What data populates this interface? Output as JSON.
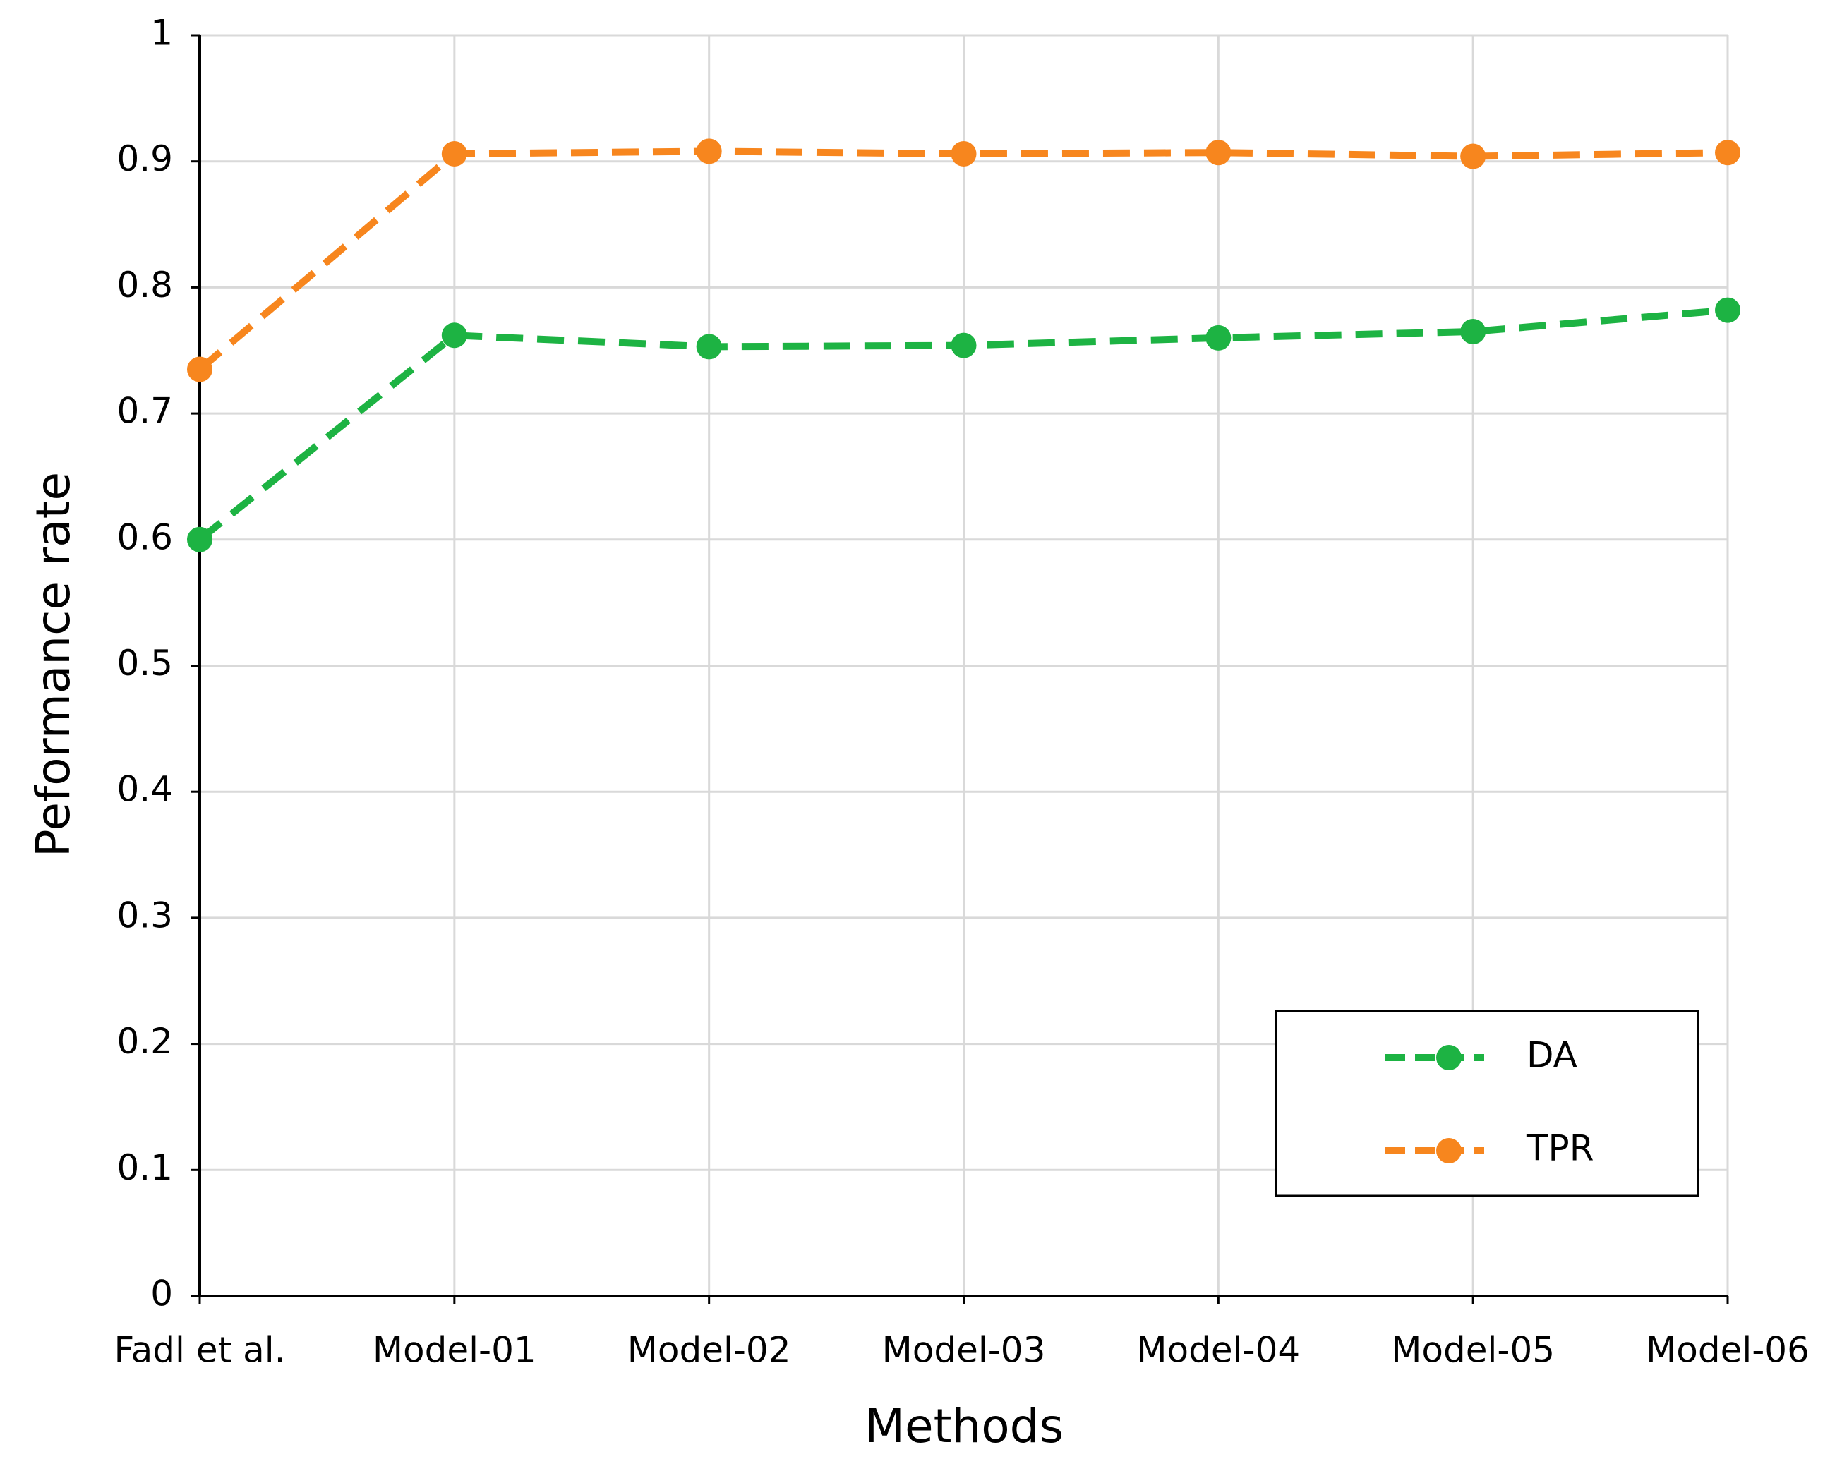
{
  "chart_data": {
    "type": "line",
    "x_label": "Methods",
    "y_label": "Peformance rate",
    "categories": [
      "Fadl et al.",
      "Model-01",
      "Model-02",
      "Model-03",
      "Model-04",
      "Model-05",
      "Model-06"
    ],
    "series": [
      {
        "name": "DA",
        "color": "#1db343",
        "values": [
          0.6,
          0.762,
          0.753,
          0.754,
          0.76,
          0.765,
          0.782
        ]
      },
      {
        "name": "TPR",
        "color": "#f7861e",
        "values": [
          0.735,
          0.906,
          0.908,
          0.906,
          0.907,
          0.904,
          0.907
        ]
      }
    ],
    "ylim": [
      0,
      1
    ],
    "yticks": [
      0,
      0.1,
      0.2,
      0.3,
      0.4,
      0.5,
      0.6,
      0.7,
      0.8,
      0.9,
      1
    ],
    "grid": true,
    "legend": "lower right"
  }
}
